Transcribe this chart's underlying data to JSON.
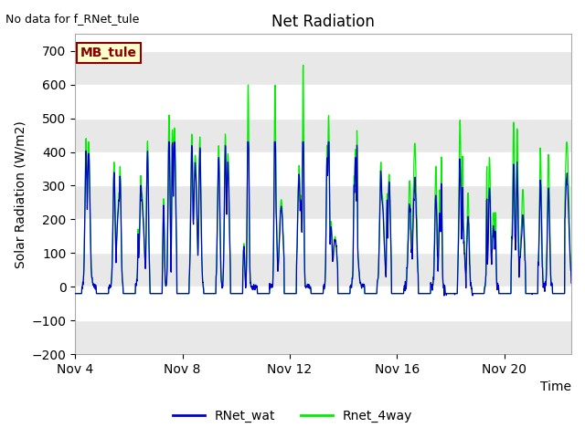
{
  "title": "Net Radiation",
  "subtitle": "No data for f_RNet_tule",
  "xlabel": "Time",
  "ylabel": "Solar Radiation (W/m2)",
  "ylim": [
    -200,
    750
  ],
  "yticks": [
    -200,
    -100,
    0,
    100,
    200,
    300,
    400,
    500,
    600,
    700
  ],
  "xtick_labels": [
    "Nov 4",
    "Nov 8",
    "Nov 12",
    "Nov 16",
    "Nov 20"
  ],
  "xtick_positions": [
    0,
    4,
    8,
    12,
    16
  ],
  "legend_entries": [
    "RNet_wat",
    "Rnet_4way"
  ],
  "line_colors_blue": "#0000cc",
  "line_colors_green": "#00ee00",
  "bg_band_color1": "#e8e8e8",
  "bg_band_color2": "#d8d8d8",
  "annotation_text": "MB_tule",
  "annotation_bg": "#ffffcc",
  "annotation_border": "#880000",
  "n_days": 18.5,
  "xlim_end": 18.5
}
